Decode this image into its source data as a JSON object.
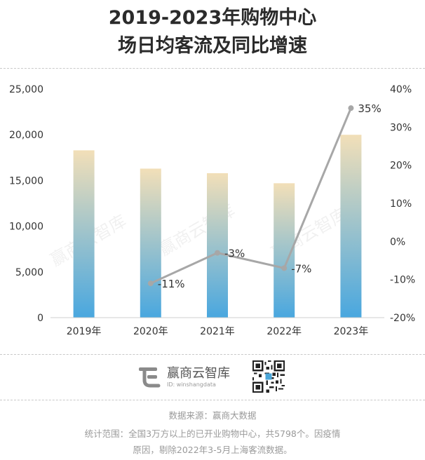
{
  "title_line1": "2019-2023年购物中心",
  "title_line2": "场日均客流及同比增速",
  "brand": {
    "name": "赢商云智库",
    "id": "ID: winshangdata",
    "logo_icon": "winshang-logo-icon",
    "qr_icon": "qr-code-icon"
  },
  "footer": {
    "source": "数据来源：赢商大数据",
    "scope_line1": "统计范围：全国3万方以上的已开业购物中心，共5798个。因疫情",
    "scope_line2": "原因，剔除2022年3-5月上海客流数据。"
  },
  "chart_data": {
    "type": "bar+line",
    "categories": [
      "2019年",
      "2020年",
      "2021年",
      "2022年",
      "2023年"
    ],
    "bar_values": [
      18300,
      16300,
      15800,
      14700,
      20000
    ],
    "line_values": [
      null,
      -11,
      -3,
      -7,
      35
    ],
    "line_labels": [
      "",
      "-11%",
      "-3%",
      "-7%",
      "35%"
    ],
    "y_left": {
      "min": 0,
      "max": 25000,
      "ticks": [
        "0",
        "5,000",
        "10,000",
        "15,000",
        "20,000",
        "25,000"
      ]
    },
    "y_right": {
      "min": -20,
      "max": 40,
      "ticks": [
        "-20%",
        "-10%",
        "0%",
        "10%",
        "20%",
        "30%",
        "40%"
      ]
    },
    "colors": {
      "bar_top": "#f2dfb8",
      "bar_bottom": "#49a7df",
      "line": "#a7a7a7"
    },
    "watermark": "赢商云智库"
  }
}
